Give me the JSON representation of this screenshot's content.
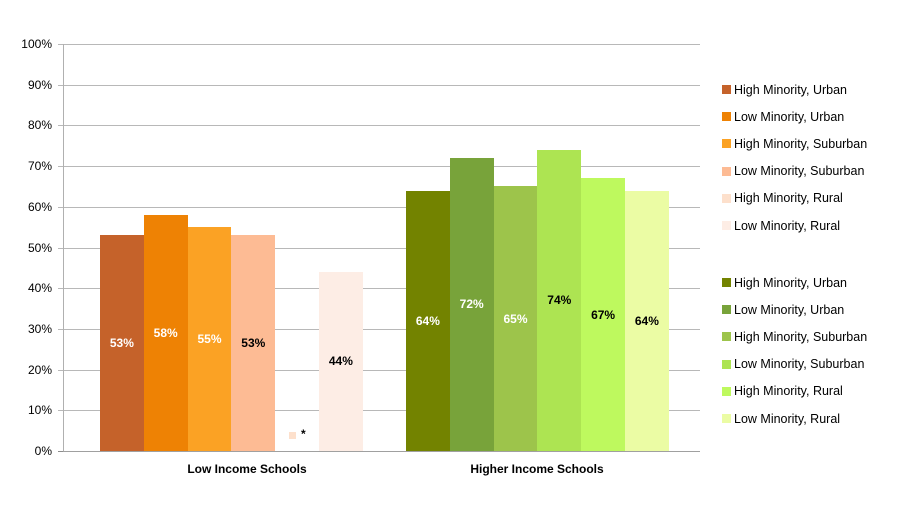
{
  "chart_data": {
    "type": "bar",
    "title": "",
    "xlabel": "",
    "ylabel": "",
    "ylim": [
      0,
      100
    ],
    "y_ticks": [
      "0%",
      "10%",
      "20%",
      "30%",
      "40%",
      "50%",
      "60%",
      "70%",
      "80%",
      "90%",
      "100%"
    ],
    "grid": true,
    "legend_position": "right",
    "categories": [
      "Low Income Schools",
      "Higher Income Schools"
    ],
    "groups": [
      {
        "category": "Low Income Schools",
        "series": [
          {
            "name": "High Minority, Urban",
            "value": 53,
            "label": "53%",
            "color": "#c5622a",
            "label_color": "#ffffff"
          },
          {
            "name": "Low Minority, Urban",
            "value": 58,
            "label": "58%",
            "color": "#ee8204",
            "label_color": "#ffffff"
          },
          {
            "name": "High Minority, Suburban",
            "value": 55,
            "label": "55%",
            "color": "#fba224",
            "label_color": "#ffffff"
          },
          {
            "name": "Low Minority, Suburban",
            "value": 53,
            "label": "53%",
            "color": "#fdbb94",
            "label_color": "#000000"
          },
          {
            "name": "High Minority, Rural",
            "value": null,
            "label": "*",
            "color": "#fde0cc",
            "label_color": "#000000"
          },
          {
            "name": "Low Minority, Rural",
            "value": 44,
            "label": "44%",
            "color": "#fdede5",
            "label_color": "#000000"
          }
        ]
      },
      {
        "category": "Higher Income Schools",
        "series": [
          {
            "name": "High Minority, Urban",
            "value": 64,
            "label": "64%",
            "color": "#738300",
            "label_color": "#ffffff"
          },
          {
            "name": "Low Minority, Urban",
            "value": 72,
            "label": "72%",
            "color": "#78a33a",
            "label_color": "#ffffff"
          },
          {
            "name": "High Minority, Suburban",
            "value": 65,
            "label": "65%",
            "color": "#9dc44b",
            "label_color": "#ffffff"
          },
          {
            "name": "Low Minority, Suburban",
            "value": 74,
            "label": "74%",
            "color": "#ade452",
            "label_color": "#000000"
          },
          {
            "name": "High Minority, Rural",
            "value": 67,
            "label": "67%",
            "color": "#bef95e",
            "label_color": "#000000"
          },
          {
            "name": "Low Minority, Rural",
            "value": 64,
            "label": "64%",
            "color": "#ebfca4",
            "label_color": "#000000"
          }
        ]
      }
    ],
    "annotations": [
      "*"
    ]
  },
  "legend": {
    "low_income": [
      {
        "label": "High Minority, Urban",
        "color": "#c5622a"
      },
      {
        "label": "Low Minority, Urban",
        "color": "#ee8204"
      },
      {
        "label": "High Minority, Suburban",
        "color": "#fba224"
      },
      {
        "label": "Low Minority, Suburban",
        "color": "#fdbb94"
      },
      {
        "label": "High Minority, Rural",
        "color": "#fde0cc"
      },
      {
        "label": "Low Minority, Rural",
        "color": "#fdede5"
      }
    ],
    "higher_income": [
      {
        "label": "High Minority, Urban",
        "color": "#738300"
      },
      {
        "label": "Low Minority, Urban",
        "color": "#78a33a"
      },
      {
        "label": "High Minority, Suburban",
        "color": "#9dc44b"
      },
      {
        "label": "Low Minority, Suburban",
        "color": "#ade452"
      },
      {
        "label": "High Minority, Rural",
        "color": "#bef95e"
      },
      {
        "label": "Low Minority, Rural",
        "color": "#ebfca4"
      }
    ]
  },
  "note": {
    "star": "*",
    "color": "#fde0cc"
  }
}
